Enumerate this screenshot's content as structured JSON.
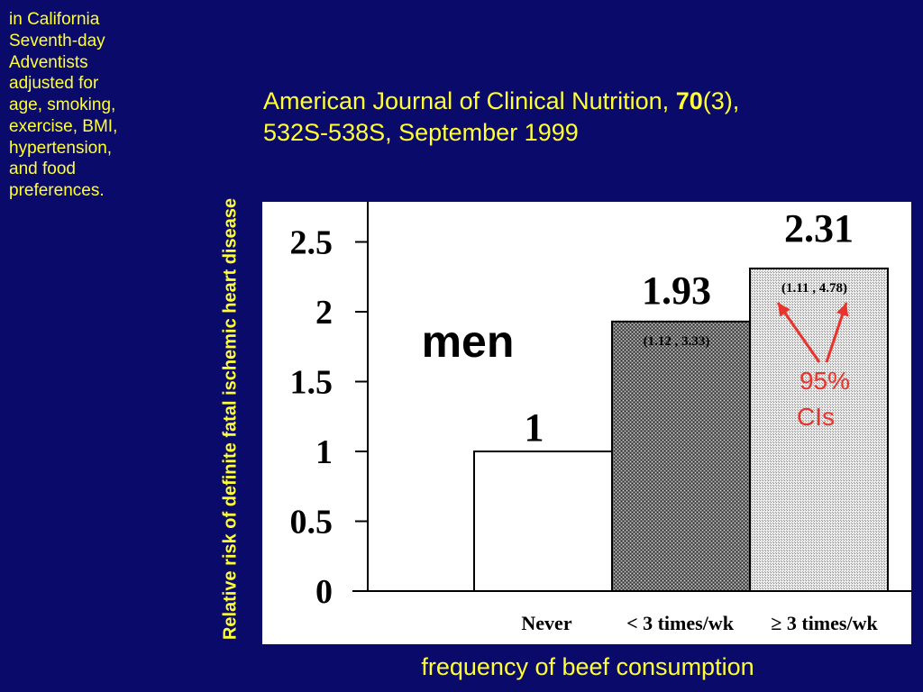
{
  "side_note": [
    " in California",
    "Seventh-day",
    "Adventists",
    "adjusted for",
    "age, smoking,",
    "exercise, BMI,",
    "hypertension,",
    "and food",
    "preferences."
  ],
  "citation": {
    "journal": "American Journal of Clinical Nutrition, ",
    "volume": "70",
    "issue": "(3),",
    "pages_date": "532S-538S, September 1999"
  },
  "colors": {
    "background": "#0a0a6b",
    "text": "#ffff33",
    "annotation": "#e8342c"
  },
  "chart_data": {
    "type": "bar",
    "categories": [
      "Never",
      "< 3 times/wk",
      "≥ 3 times/wk"
    ],
    "values": [
      1,
      1.93,
      2.31
    ],
    "value_labels": [
      "1",
      "1.93",
      "2.31"
    ],
    "ci_labels": [
      "",
      "(1.12 , 3.33)",
      "(1.11 , 4.78)"
    ],
    "ylim": [
      0,
      2.8
    ],
    "yticks": [
      0,
      0.5,
      1,
      1.5,
      2,
      2.5
    ],
    "ytick_labels": [
      "0",
      "0.5",
      "1",
      "1.5",
      "2",
      "2.5"
    ],
    "ylabel": "Relative risk of definite fatal ischemic heart disease",
    "xlabel": "frequency of beef consumption",
    "panel_label": "men",
    "annotation": "95% CIs",
    "fills": [
      "white",
      "dark-stipple",
      "light-stipple"
    ]
  }
}
